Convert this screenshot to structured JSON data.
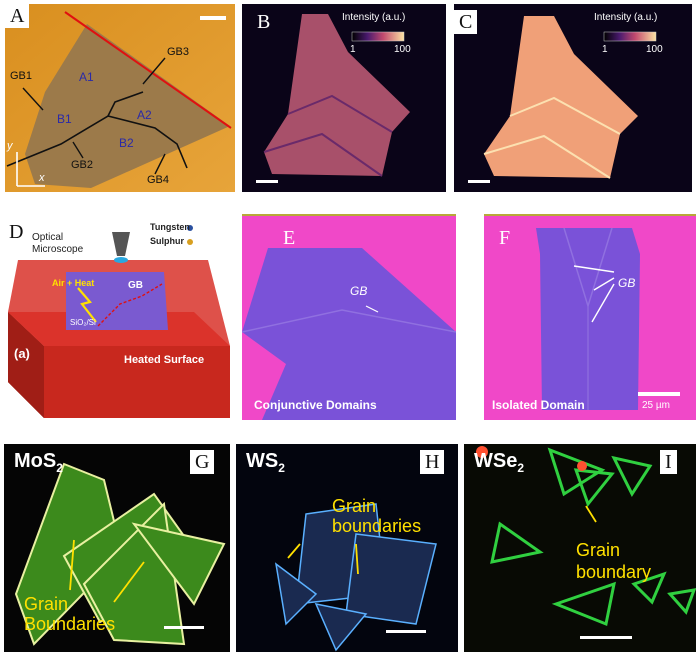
{
  "figure": {
    "panel_a": {
      "letter": "A",
      "labels": {
        "gb1": "GB1",
        "gb2": "GB2",
        "gb3": "GB3",
        "gb4": "GB4",
        "a1": "A1",
        "a2": "A2",
        "b1": "B1",
        "b2": "B2",
        "x": "x",
        "y": "y"
      }
    },
    "panel_b": {
      "letter": "B",
      "colorbar_title": "Intensity (a.u.)",
      "min": "1",
      "max": "100"
    },
    "panel_c": {
      "letter": "C",
      "colorbar_title": "Intensity (a.u.)",
      "min": "1",
      "max": "100"
    },
    "panel_d": {
      "letter": "D",
      "optical_line1": "Optical",
      "optical_line2": "Microscope",
      "tungsten": "Tungsten",
      "sulphur": "Sulphur",
      "air_heat": "Air + Heat",
      "gb": "GB",
      "substrate": "SiO₂/Si",
      "sub_label": "(a)",
      "heated_surface": "Heated Surface"
    },
    "panel_e": {
      "letter": "E",
      "gb": "GB",
      "caption": "Conjunctive Domains"
    },
    "panel_f": {
      "letter": "F",
      "gb": "GB",
      "caption": "Isolated Domain",
      "scale": "25 µm"
    },
    "panel_g": {
      "letter": "G",
      "material": "MoS",
      "subscript": "2",
      "label_line1": "Grain",
      "label_line2": "Boundaries"
    },
    "panel_h": {
      "letter": "H",
      "material": "WS",
      "subscript": "2",
      "label_line1": "Grain",
      "label_line2": "boundaries"
    },
    "panel_i": {
      "letter": "I",
      "material": "WSe",
      "subscript": "2",
      "label_line1": "Grain",
      "label_line2": "boundary"
    }
  }
}
